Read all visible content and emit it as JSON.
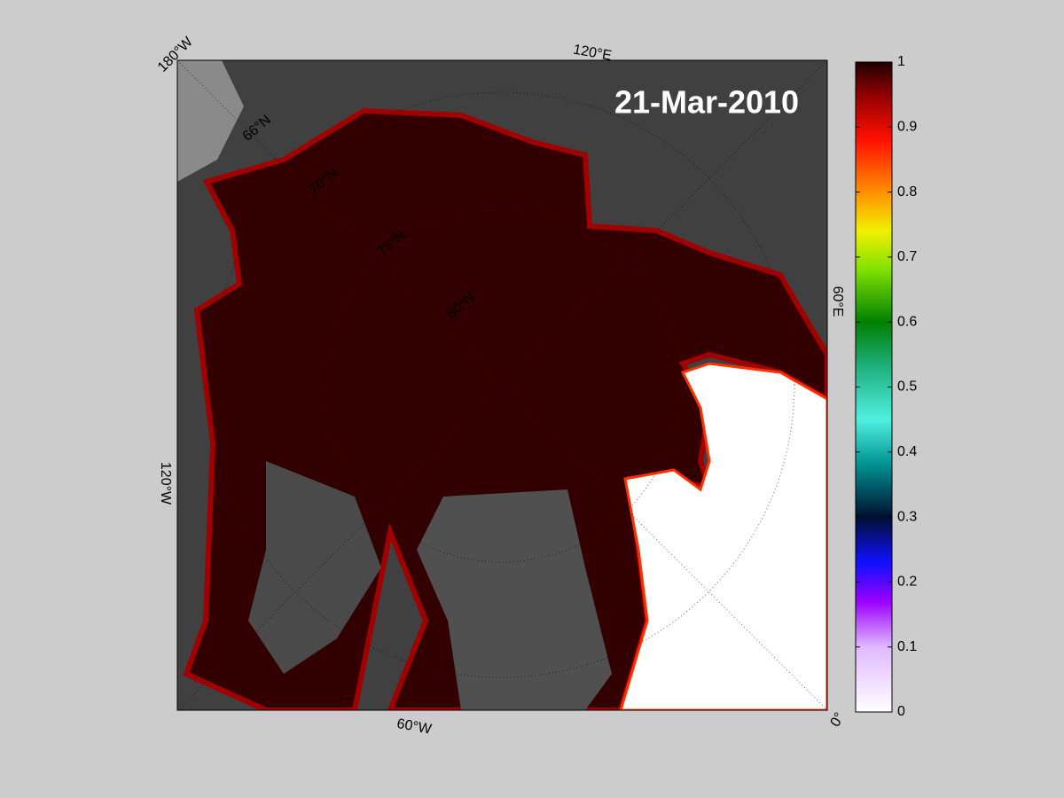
{
  "map": {
    "date_label": "21-Mar-2010",
    "longitude_labels": [
      "180°W",
      "120°E",
      "60°E",
      "0°",
      "60°W",
      "120°W"
    ],
    "latitude_labels": [
      "66°N",
      "70°N",
      "75°N",
      "80°N"
    ]
  },
  "colorbar": {
    "lim": [
      0,
      1
    ],
    "ticks": [
      0,
      0.1,
      0.2,
      0.3,
      0.4,
      0.5,
      0.6,
      0.7,
      0.8,
      0.9,
      1
    ]
  }
}
